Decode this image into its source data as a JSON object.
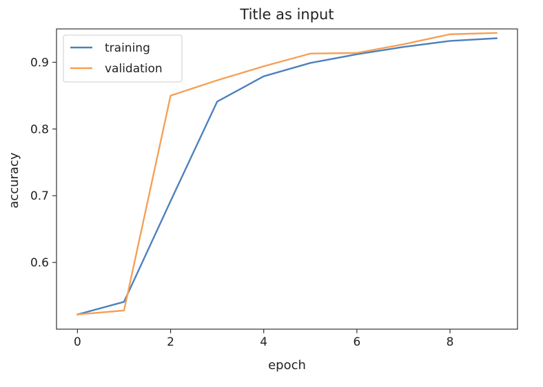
{
  "chart_data": {
    "type": "line",
    "title": "Title as input",
    "xlabel": "epoch",
    "ylabel": "accuracy",
    "xlim": [
      -0.45,
      9.45
    ],
    "ylim": [
      0.5,
      0.95
    ],
    "xticks": [
      0,
      2,
      4,
      6,
      8
    ],
    "yticks": [
      0.6,
      0.7,
      0.8,
      0.9
    ],
    "xtick_labels": [
      "0",
      "2",
      "4",
      "6",
      "8"
    ],
    "ytick_labels": [
      "0.6",
      "0.7",
      "0.8",
      "0.9"
    ],
    "grid": false,
    "legend_position": "upper-left",
    "x": [
      0,
      1,
      2,
      3,
      4,
      5,
      6,
      7,
      8,
      9
    ],
    "series": [
      {
        "name": "training",
        "color": "#4c81bd",
        "values": [
          0.522,
          0.541,
          0.692,
          0.841,
          0.879,
          0.899,
          0.912,
          0.923,
          0.932,
          0.936
        ]
      },
      {
        "name": "validation",
        "color": "#f5a055",
        "values": [
          0.522,
          0.528,
          0.85,
          0.873,
          0.894,
          0.913,
          0.914,
          0.927,
          0.942,
          0.944
        ]
      }
    ]
  }
}
